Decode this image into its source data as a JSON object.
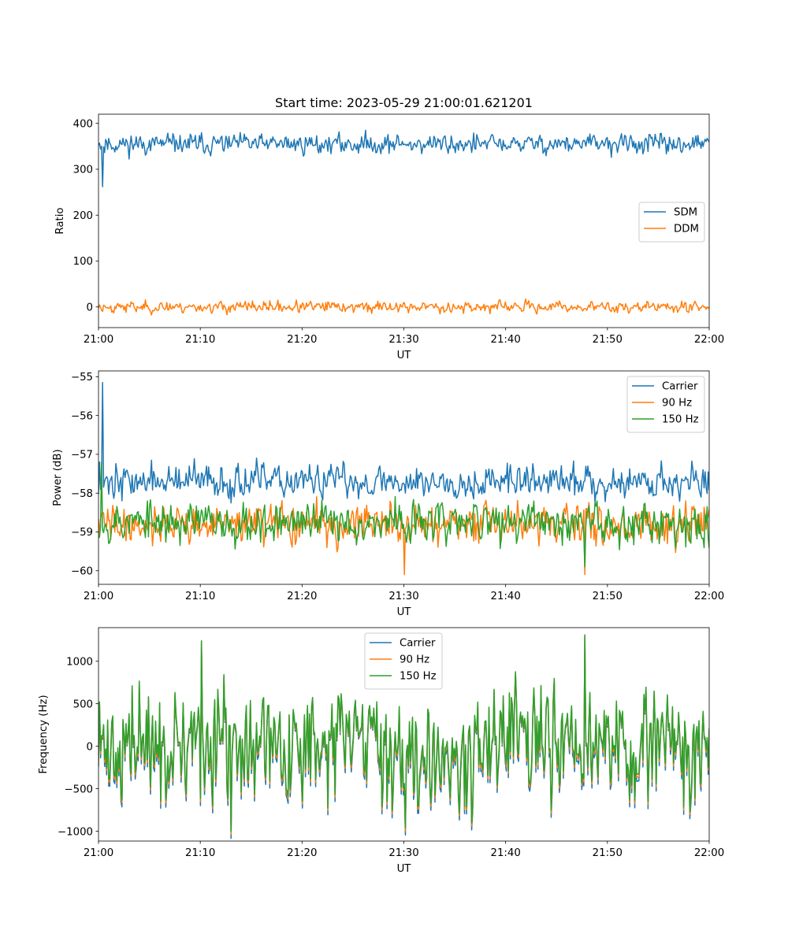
{
  "figure": {
    "title": "Start time: 2023-05-29 21:00:01.621201"
  },
  "chart_data": [
    {
      "type": "line",
      "title": "Start time: 2023-05-29 21:00:01.621201",
      "xlabel": "UT",
      "ylabel": "Ratio",
      "xlim": [
        "21:00",
        "22:00"
      ],
      "x_ticks": [
        "21:00",
        "21:10",
        "21:20",
        "21:30",
        "21:40",
        "21:50",
        "22:00"
      ],
      "ylim": [
        -45,
        420
      ],
      "y_ticks": [
        0,
        100,
        200,
        300,
        400
      ],
      "grid": false,
      "legend_position": "center-right",
      "series": [
        {
          "name": "SDM",
          "color": "#1f77b4",
          "mean": 355,
          "noise": 14,
          "seed": 11,
          "spikes": [
            {
              "t": 0.4,
              "v": 262
            },
            {
              "t": 0.05,
              "v": 352
            }
          ]
        },
        {
          "name": "DDM",
          "color": "#ff7f0e",
          "mean": 0,
          "noise": 8,
          "seed": 23,
          "spikes": []
        }
      ]
    },
    {
      "type": "line",
      "title": "",
      "xlabel": "UT",
      "ylabel": "Power (dB)",
      "xlim": [
        "21:00",
        "22:00"
      ],
      "x_ticks": [
        "21:00",
        "21:10",
        "21:20",
        "21:30",
        "21:40",
        "21:50",
        "22:00"
      ],
      "ylim": [
        -60.35,
        -54.85
      ],
      "y_ticks": [
        -60,
        -59,
        -58,
        -57,
        -56,
        -55
      ],
      "grid": false,
      "legend_position": "upper right",
      "series": [
        {
          "name": "Carrier",
          "color": "#1f77b4",
          "mean": -57.7,
          "noise": 0.28,
          "seed": 37,
          "spikes": [
            {
              "t": 0.4,
              "v": -55.15
            },
            {
              "t": 0.15,
              "v": -57.2
            }
          ]
        },
        {
          "name": "90 Hz",
          "color": "#ff7f0e",
          "mean": -58.8,
          "noise": 0.32,
          "seed": 41,
          "spikes": [
            {
              "t": 30.0,
              "v": -60.1
            },
            {
              "t": 47.8,
              "v": -60.1
            }
          ]
        },
        {
          "name": "150 Hz",
          "color": "#2ca02c",
          "mean": -58.75,
          "noise": 0.34,
          "seed": 53,
          "spikes": [
            {
              "t": 0.3,
              "v": -57.2
            },
            {
              "t": 47.8,
              "v": -59.9
            }
          ]
        }
      ]
    },
    {
      "type": "line",
      "title": "",
      "xlabel": "UT",
      "ylabel": "Frequency (Hz)",
      "xlim": [
        "21:00",
        "22:00"
      ],
      "x_ticks": [
        "21:00",
        "21:10",
        "21:20",
        "21:30",
        "21:40",
        "21:50",
        "22:00"
      ],
      "ylim": [
        -1115,
        1395
      ],
      "y_ticks": [
        -1000,
        -500,
        0,
        500,
        1000
      ],
      "grid": false,
      "legend_position": "upper center",
      "series": [
        {
          "name": "Carrier",
          "color": "#1f77b4",
          "offset": -60
        },
        {
          "name": "90 Hz",
          "color": "#ff7f0e",
          "offset": -25
        },
        {
          "name": "150 Hz",
          "color": "#2ca02c",
          "offset": 0
        }
      ],
      "base": {
        "mean": 0,
        "noise": 420,
        "seed": 71,
        "spikes": [
          {
            "t": 10.1,
            "v": 1240
          },
          {
            "t": 47.8,
            "v": 1310
          },
          {
            "t": 13.0,
            "v": -1000
          },
          {
            "t": 30.2,
            "v": -960
          }
        ]
      }
    }
  ]
}
